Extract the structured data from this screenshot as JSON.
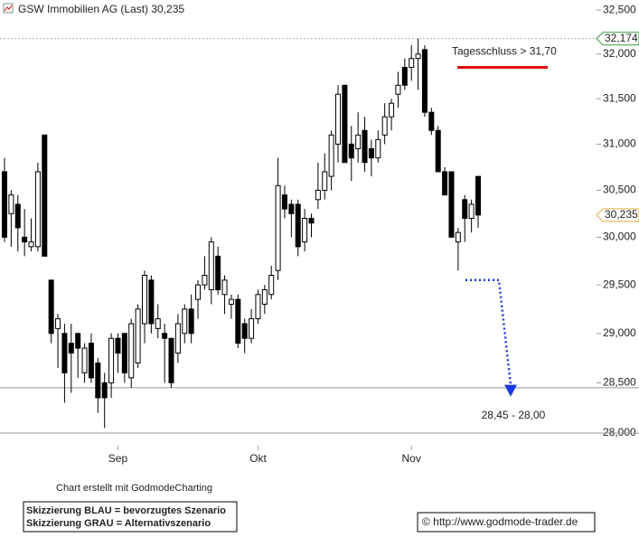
{
  "chart_data": {
    "type": "candlestick",
    "title": "GSW Immobilien AG (Last) 30,235",
    "log_scale": true,
    "ylim": [
      27875,
      32615
    ],
    "yticks": [
      {
        "value": 32500,
        "label": "32,500"
      },
      {
        "value": 32000,
        "label": "32,000"
      },
      {
        "value": 31500,
        "label": "31,500"
      },
      {
        "value": 31000,
        "label": "31,000"
      },
      {
        "value": 30500,
        "label": "30,500"
      },
      {
        "value": 30000,
        "label": "30,000"
      },
      {
        "value": 29500,
        "label": "29,500"
      },
      {
        "value": 29000,
        "label": "29,000"
      },
      {
        "value": 28500,
        "label": "28,500"
      },
      {
        "value": 28000,
        "label": "28,000"
      }
    ],
    "categories": [
      null,
      null,
      null,
      null,
      null,
      null,
      null,
      null,
      null,
      null,
      null,
      null,
      null,
      null,
      null,
      null,
      null,
      "Sep",
      null,
      null,
      null,
      null,
      null,
      null,
      null,
      null,
      null,
      null,
      null,
      null,
      null,
      null,
      null,
      null,
      null,
      null,
      null,
      null,
      "Okt",
      null,
      null,
      null,
      null,
      null,
      null,
      null,
      null,
      null,
      null,
      null,
      null,
      null,
      null,
      null,
      null,
      null,
      null,
      null,
      null,
      null,
      null,
      "Nov",
      null,
      null,
      null,
      null,
      null,
      null,
      null,
      null,
      null,
      null
    ],
    "open": [
      30700,
      30250,
      30350,
      30000,
      29900,
      29900,
      31100,
      29550,
      29050,
      29000,
      28900,
      29000,
      28600,
      28900,
      28700,
      28500,
      28500,
      28950,
      29000,
      28550,
      28700,
      29100,
      29550,
      29050,
      29000,
      28950,
      28800,
      29000,
      29250,
      29350,
      29500,
      29450,
      29800,
      29400,
      29300,
      29350,
      29100,
      28950,
      29150,
      29300,
      29400,
      29650,
      30450,
      30350,
      30350,
      29950,
      30200,
      30400,
      30500,
      30650,
      31000,
      31650,
      31000,
      30950,
      31150,
      30950,
      30850,
      31100,
      31300,
      31550,
      31850,
      31850,
      31950,
      32050,
      31350,
      31150,
      30700,
      30700,
      29950,
      30400,
      30200,
      30650
    ],
    "high": [
      30850,
      30500,
      30450,
      30300,
      30200,
      30800,
      31100,
      29550,
      29200,
      29100,
      29100,
      29000,
      28900,
      29000,
      28750,
      28600,
      29000,
      29000,
      29000,
      29150,
      29300,
      29650,
      29600,
      29300,
      29100,
      28950,
      29200,
      29300,
      29400,
      29550,
      29800,
      30000,
      29900,
      29600,
      29400,
      29400,
      29150,
      29250,
      29450,
      29500,
      29700,
      30850,
      30550,
      30400,
      30400,
      30300,
      30250,
      30800,
      30900,
      31150,
      31650,
      31650,
      31200,
      31350,
      31300,
      31050,
      31150,
      31450,
      31500,
      31800,
      31950,
      32100,
      32174,
      32100,
      31400,
      31200,
      30750,
      30700,
      30100,
      30450,
      30400,
      30650
    ],
    "low": [
      29950,
      29900,
      29850,
      29800,
      29850,
      29850,
      29800,
      28900,
      28650,
      28300,
      28400,
      28550,
      28500,
      28500,
      28200,
      28050,
      28350,
      28600,
      28500,
      28450,
      28650,
      28900,
      29000,
      28950,
      28500,
      28450,
      28700,
      28900,
      28900,
      29150,
      29450,
      29300,
      29400,
      29200,
      29150,
      28850,
      28800,
      28900,
      29100,
      29200,
      29350,
      29550,
      30200,
      30000,
      29800,
      29850,
      30000,
      30300,
      30400,
      30500,
      30800,
      30800,
      30600,
      30800,
      30700,
      30650,
      30800,
      31000,
      31150,
      31400,
      31600,
      31700,
      31600,
      31300,
      31100,
      30700,
      30450,
      30000,
      29650,
      29950,
      30050,
      30100
    ],
    "close": [
      30000,
      30450,
      30100,
      29950,
      29950,
      30700,
      29800,
      29000,
      29150,
      28600,
      28800,
      28850,
      28850,
      28550,
      28350,
      28350,
      28950,
      28800,
      28600,
      29100,
      29250,
      29600,
      29100,
      29150,
      28950,
      28500,
      29100,
      29250,
      29000,
      29500,
      29600,
      29950,
      29450,
      29550,
      29350,
      28900,
      28950,
      29150,
      29400,
      29450,
      29600,
      30550,
      30300,
      30250,
      29900,
      30200,
      30150,
      30500,
      30700,
      31100,
      31550,
      30800,
      30850,
      31100,
      30800,
      30850,
      31050,
      31300,
      31450,
      31650,
      31650,
      31950,
      32000,
      31350,
      31150,
      30700,
      30450,
      30000,
      30050,
      30200,
      30350,
      30235
    ],
    "price_tags": [
      {
        "value": 32174,
        "label": "32,174",
        "color": "#3a9a3a"
      },
      {
        "value": 30235,
        "label": "30,235",
        "color": "#e0b040"
      }
    ],
    "support_lines": [
      28450,
      28000
    ],
    "target_line": {
      "value": 31850,
      "label": "Tagesschluss > 31,70",
      "color": "#e01010"
    },
    "scenario": {
      "values": [
        29550,
        29550,
        28480
      ],
      "label": "28,45 - 28,00",
      "color": "#1a3ae0"
    },
    "credit": "Chart erstellt mit GodmodeCharting",
    "notes": [
      "Skizzierung BLAU = bevorzugtes Szenario",
      "Skizzierung GRAU = Alternativszenario"
    ],
    "source": "© http://www.godmode-trader.de"
  }
}
